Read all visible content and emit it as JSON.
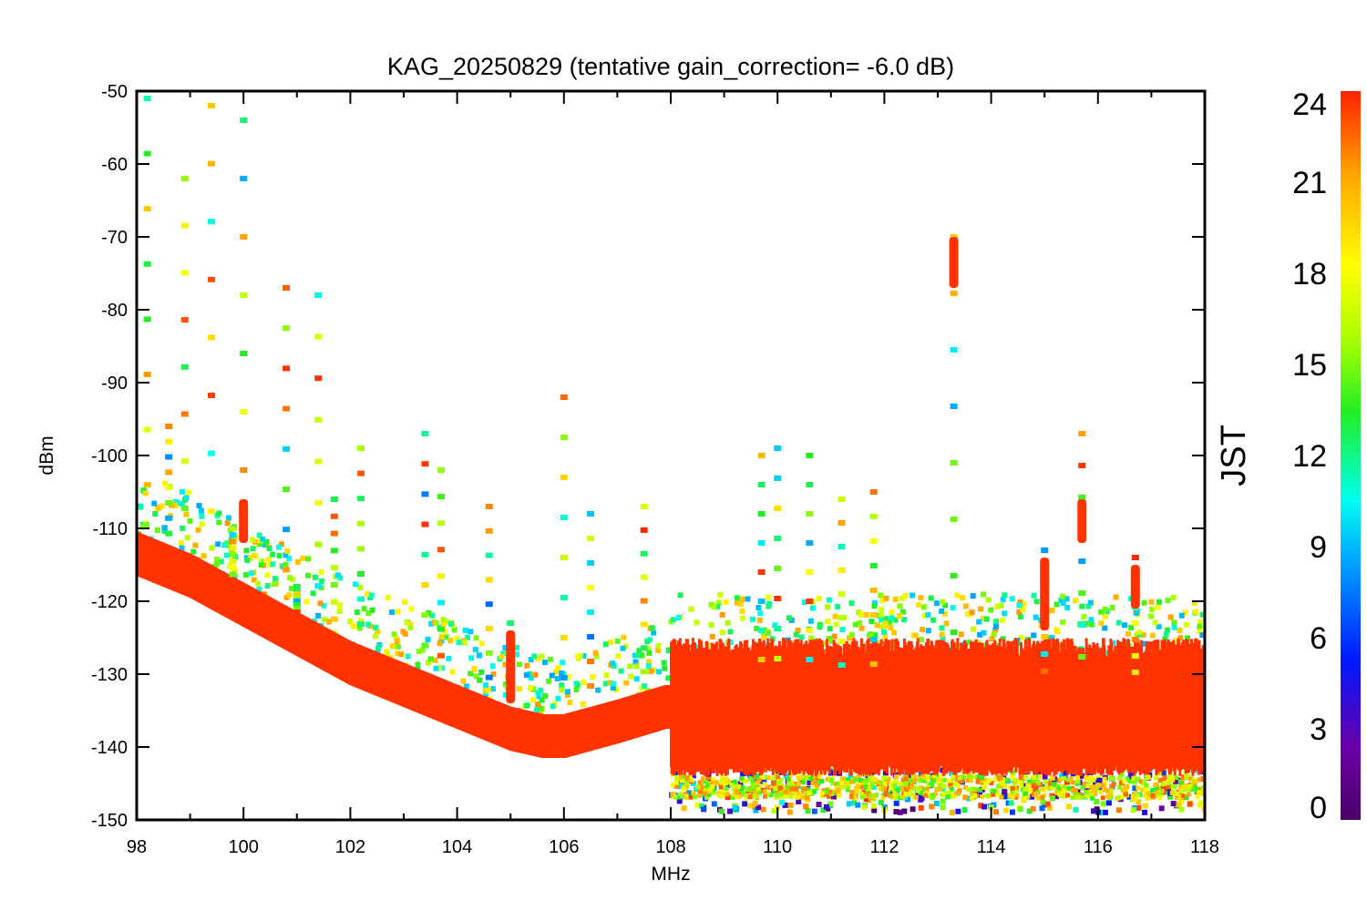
{
  "chart_data": {
    "type": "scatter",
    "title": "KAG_20250829 (tentative gain_correction= -6.0 dB)",
    "xlabel": "MHz",
    "ylabel": "dBm",
    "xlim": [
      98,
      118
    ],
    "ylim": [
      -150,
      -50
    ],
    "xticks": [
      "98",
      "100",
      "102",
      "104",
      "106",
      "108",
      "110",
      "112",
      "114",
      "116",
      "118"
    ],
    "yticks": [
      "-50",
      "-60",
      "-70",
      "-80",
      "-90",
      "-100",
      "-110",
      "-120",
      "-130",
      "-140",
      "-150"
    ],
    "colorbar": {
      "label": "JST",
      "range": [
        0,
        24
      ],
      "ticks": [
        "0",
        "3",
        "6",
        "9",
        "12",
        "15",
        "18",
        "21",
        "24"
      ],
      "colormap": "rainbow"
    },
    "noise_floor": [
      {
        "x": 98.0,
        "y": -114
      },
      {
        "x": 99.0,
        "y": -117
      },
      {
        "x": 100.0,
        "y": -121
      },
      {
        "x": 101.0,
        "y": -125
      },
      {
        "x": 102.0,
        "y": -129
      },
      {
        "x": 103.0,
        "y": -132
      },
      {
        "x": 104.0,
        "y": -135
      },
      {
        "x": 105.0,
        "y": -138
      },
      {
        "x": 105.6,
        "y": -139
      },
      {
        "x": 106.0,
        "y": -139
      },
      {
        "x": 107.0,
        "y": -137
      },
      {
        "x": 107.9,
        "y": -135
      },
      {
        "x": 108.0,
        "y": -135
      },
      {
        "x": 110.0,
        "y": -135
      },
      {
        "x": 112.0,
        "y": -135
      },
      {
        "x": 114.0,
        "y": -135
      },
      {
        "x": 116.0,
        "y": -135
      },
      {
        "x": 118.0,
        "y": -135
      }
    ],
    "noise_spread_above_108": [
      -144,
      -127
    ],
    "signals": [
      {
        "freq": 98.2,
        "max_dBm": -51
      },
      {
        "freq": 98.6,
        "max_dBm": -96
      },
      {
        "freq": 98.9,
        "max_dBm": -62
      },
      {
        "freq": 99.4,
        "max_dBm": -52
      },
      {
        "freq": 99.8,
        "max_dBm": -110
      },
      {
        "freq": 100.0,
        "max_dBm": -54
      },
      {
        "freq": 100.8,
        "max_dBm": -77
      },
      {
        "freq": 101.0,
        "max_dBm": -118
      },
      {
        "freq": 101.4,
        "max_dBm": -78
      },
      {
        "freq": 101.7,
        "max_dBm": -106
      },
      {
        "freq": 102.2,
        "max_dBm": -99
      },
      {
        "freq": 103.4,
        "max_dBm": -97
      },
      {
        "freq": 103.7,
        "max_dBm": -102
      },
      {
        "freq": 104.6,
        "max_dBm": -107
      },
      {
        "freq": 105.0,
        "max_dBm": -123
      },
      {
        "freq": 106.0,
        "max_dBm": -92
      },
      {
        "freq": 106.5,
        "max_dBm": -108
      },
      {
        "freq": 107.5,
        "max_dBm": -107
      },
      {
        "freq": 109.7,
        "max_dBm": -100
      },
      {
        "freq": 110.0,
        "max_dBm": -99
      },
      {
        "freq": 110.6,
        "max_dBm": -100
      },
      {
        "freq": 111.2,
        "max_dBm": -106
      },
      {
        "freq": 111.8,
        "max_dBm": -105
      },
      {
        "freq": 113.3,
        "max_dBm": -70
      },
      {
        "freq": 115.0,
        "max_dBm": -113
      },
      {
        "freq": 115.7,
        "max_dBm": -97
      },
      {
        "freq": 116.7,
        "max_dBm": -114
      }
    ]
  }
}
